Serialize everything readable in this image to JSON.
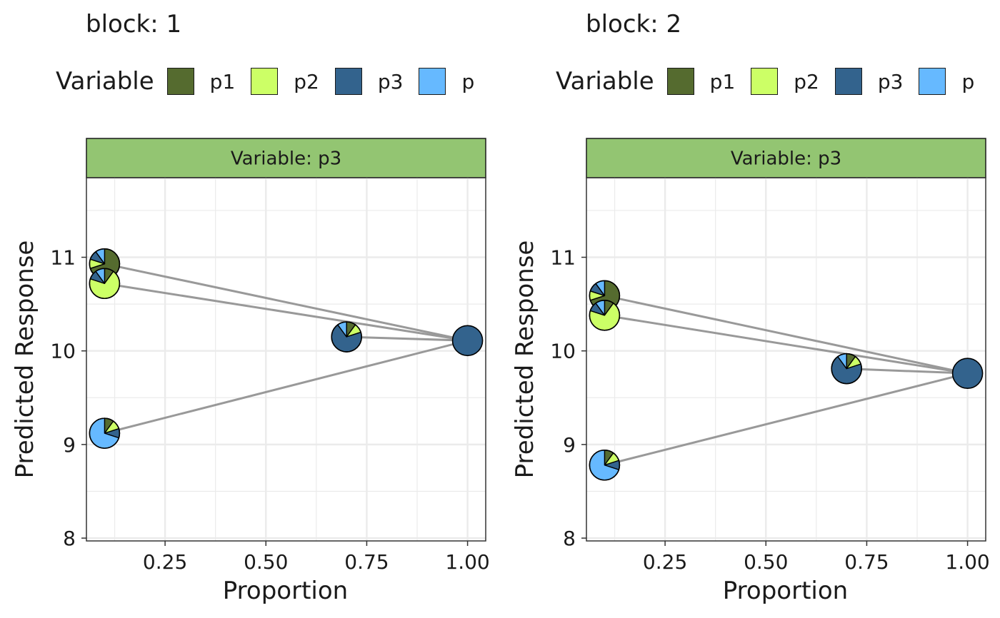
{
  "colors": {
    "p1": "#556b2f",
    "p2": "#ccff66",
    "p3": "#33638d",
    "p4": "#66b9ff",
    "strip": "#93c572",
    "line": "#999999",
    "grid": "#ebebeb"
  },
  "legend": {
    "title": "Variable",
    "items": [
      {
        "label": "p1",
        "color": "#556b2f"
      },
      {
        "label": "p2",
        "color": "#ccff66"
      },
      {
        "label": "p3",
        "color": "#33638d"
      },
      {
        "label": "p",
        "color": "#66b9ff"
      }
    ]
  },
  "chart_data": [
    {
      "type": "scatter",
      "title": "block: 1",
      "strip": "Variable: p3",
      "xlabel": "Proportion",
      "ylabel": "Predicted Response",
      "xlim": [
        0.055,
        1.045
      ],
      "ylim": [
        7.97,
        11.85
      ],
      "xticks": [
        0.25,
        0.5,
        0.75,
        1.0
      ],
      "xtick_labels": [
        "0.25",
        "0.50",
        "0.75",
        "1.00"
      ],
      "yticks": [
        8,
        9,
        10,
        11
      ],
      "ytick_labels": [
        "8",
        "9",
        "10",
        "11"
      ],
      "grid": true,
      "points": [
        {
          "x": 0.1,
          "y": 10.93,
          "pie": [
            0.7,
            0.1,
            0.1,
            0.1
          ]
        },
        {
          "x": 0.1,
          "y": 10.72,
          "pie": [
            0.1,
            0.7,
            0.1,
            0.1
          ]
        },
        {
          "x": 0.7,
          "y": 10.15,
          "pie": [
            0.1,
            0.1,
            0.7,
            0.1
          ]
        },
        {
          "x": 1.0,
          "y": 10.11,
          "pie": [
            0,
            0,
            1,
            0
          ]
        },
        {
          "x": 0.1,
          "y": 9.12,
          "pie": [
            0.1,
            0.1,
            0.1,
            0.7
          ]
        }
      ],
      "end": {
        "x": 1.0,
        "y": 10.11
      }
    },
    {
      "type": "scatter",
      "title": "block: 2",
      "strip": "Variable: p3",
      "xlabel": "Proportion",
      "ylabel": "Predicted Response",
      "xlim": [
        0.055,
        1.045
      ],
      "ylim": [
        7.97,
        11.85
      ],
      "xticks": [
        0.25,
        0.5,
        0.75,
        1.0
      ],
      "xtick_labels": [
        "0.25",
        "0.50",
        "0.75",
        "1.00"
      ],
      "yticks": [
        8,
        9,
        10,
        11
      ],
      "ytick_labels": [
        "8",
        "9",
        "10",
        "11"
      ],
      "grid": true,
      "points": [
        {
          "x": 0.1,
          "y": 10.59,
          "pie": [
            0.7,
            0.1,
            0.1,
            0.1
          ]
        },
        {
          "x": 0.1,
          "y": 10.38,
          "pie": [
            0.1,
            0.7,
            0.1,
            0.1
          ]
        },
        {
          "x": 0.7,
          "y": 9.81,
          "pie": [
            0.1,
            0.1,
            0.7,
            0.1
          ]
        },
        {
          "x": 1.0,
          "y": 9.76,
          "pie": [
            0,
            0,
            1,
            0
          ]
        },
        {
          "x": 0.1,
          "y": 8.78,
          "pie": [
            0.1,
            0.1,
            0.1,
            0.7
          ]
        }
      ],
      "end": {
        "x": 1.0,
        "y": 9.76
      }
    }
  ]
}
